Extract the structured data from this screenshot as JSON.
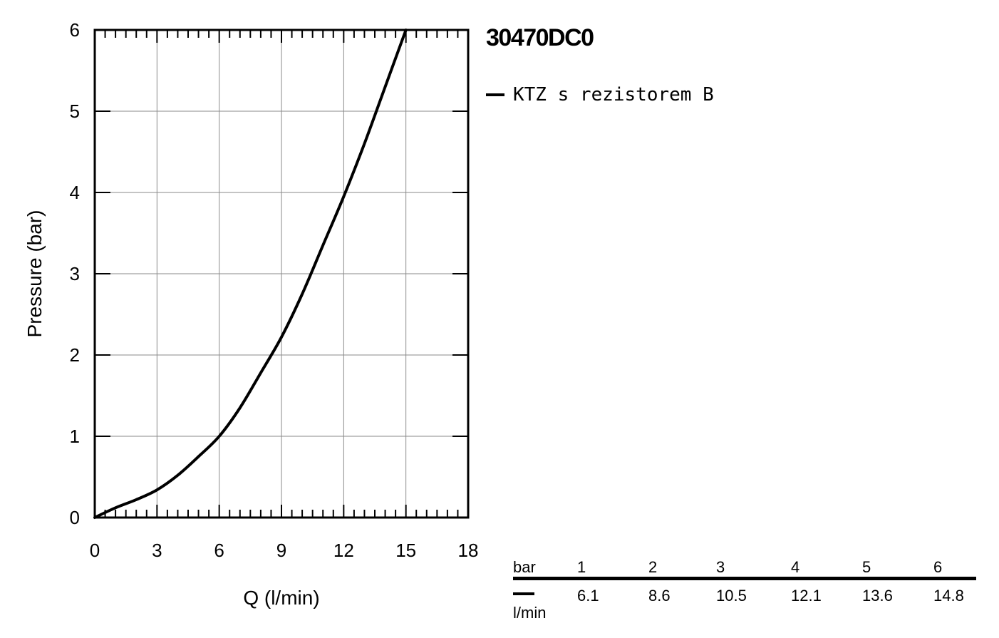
{
  "chart_data": {
    "type": "line",
    "title": "30470DC0",
    "xlabel": "Q (l/min)",
    "ylabel": "Pressure (bar)",
    "xlim": [
      0,
      18
    ],
    "ylim": [
      0,
      6
    ],
    "x_ticks": [
      0,
      3,
      6,
      9,
      12,
      15,
      18
    ],
    "y_ticks": [
      0,
      1,
      2,
      3,
      4,
      5,
      6
    ],
    "grid": true,
    "legend_position": "top-right",
    "series": [
      {
        "name": "KTZ s rezistorem B",
        "color": "#000000",
        "x": [
          0,
          1,
          2,
          3,
          4,
          5,
          6,
          7,
          8,
          9,
          10,
          11,
          12,
          13,
          14,
          15
        ],
        "y": [
          0,
          0.12,
          0.22,
          0.34,
          0.52,
          0.75,
          1.0,
          1.35,
          1.78,
          2.22,
          2.75,
          3.35,
          3.95,
          4.6,
          5.3,
          6.0
        ]
      }
    ]
  },
  "flow_table": {
    "pressure_header": "bar",
    "flow_header": "l/min",
    "pressures": [
      "1",
      "2",
      "3",
      "4",
      "5",
      "6"
    ],
    "flows": [
      "6.1",
      "8.6",
      "10.5",
      "12.1",
      "13.6",
      "14.8"
    ]
  }
}
